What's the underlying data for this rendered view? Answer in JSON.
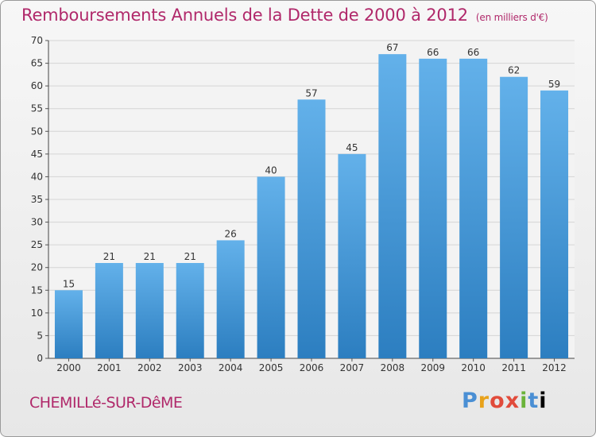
{
  "header": {
    "title": "Remboursements Annuels de la Dette de 2000 à 2012",
    "subtitle": "(en milliers d'€)"
  },
  "footer": {
    "commune": "CHEMILLé-SUR-DêME",
    "logo": "Proxiti"
  },
  "colors": {
    "title": "#b0286a",
    "bar_top": "#63b1ea",
    "bar_bottom": "#2c7ec0"
  },
  "chart_data": {
    "type": "bar",
    "title": "Remboursements Annuels de la Dette de 2000 à 2012",
    "subtitle": "(en milliers d'€)",
    "categories": [
      "2000",
      "2001",
      "2002",
      "2003",
      "2004",
      "2005",
      "2006",
      "2007",
      "2008",
      "2009",
      "2010",
      "2011",
      "2012"
    ],
    "values": [
      15,
      21,
      21,
      21,
      26,
      40,
      57,
      45,
      67,
      66,
      66,
      62,
      59
    ],
    "ylim": [
      0,
      70
    ],
    "yticks": [
      0,
      5,
      10,
      15,
      20,
      25,
      30,
      35,
      40,
      45,
      50,
      55,
      60,
      65,
      70
    ],
    "grid": true,
    "data_labels": true
  }
}
